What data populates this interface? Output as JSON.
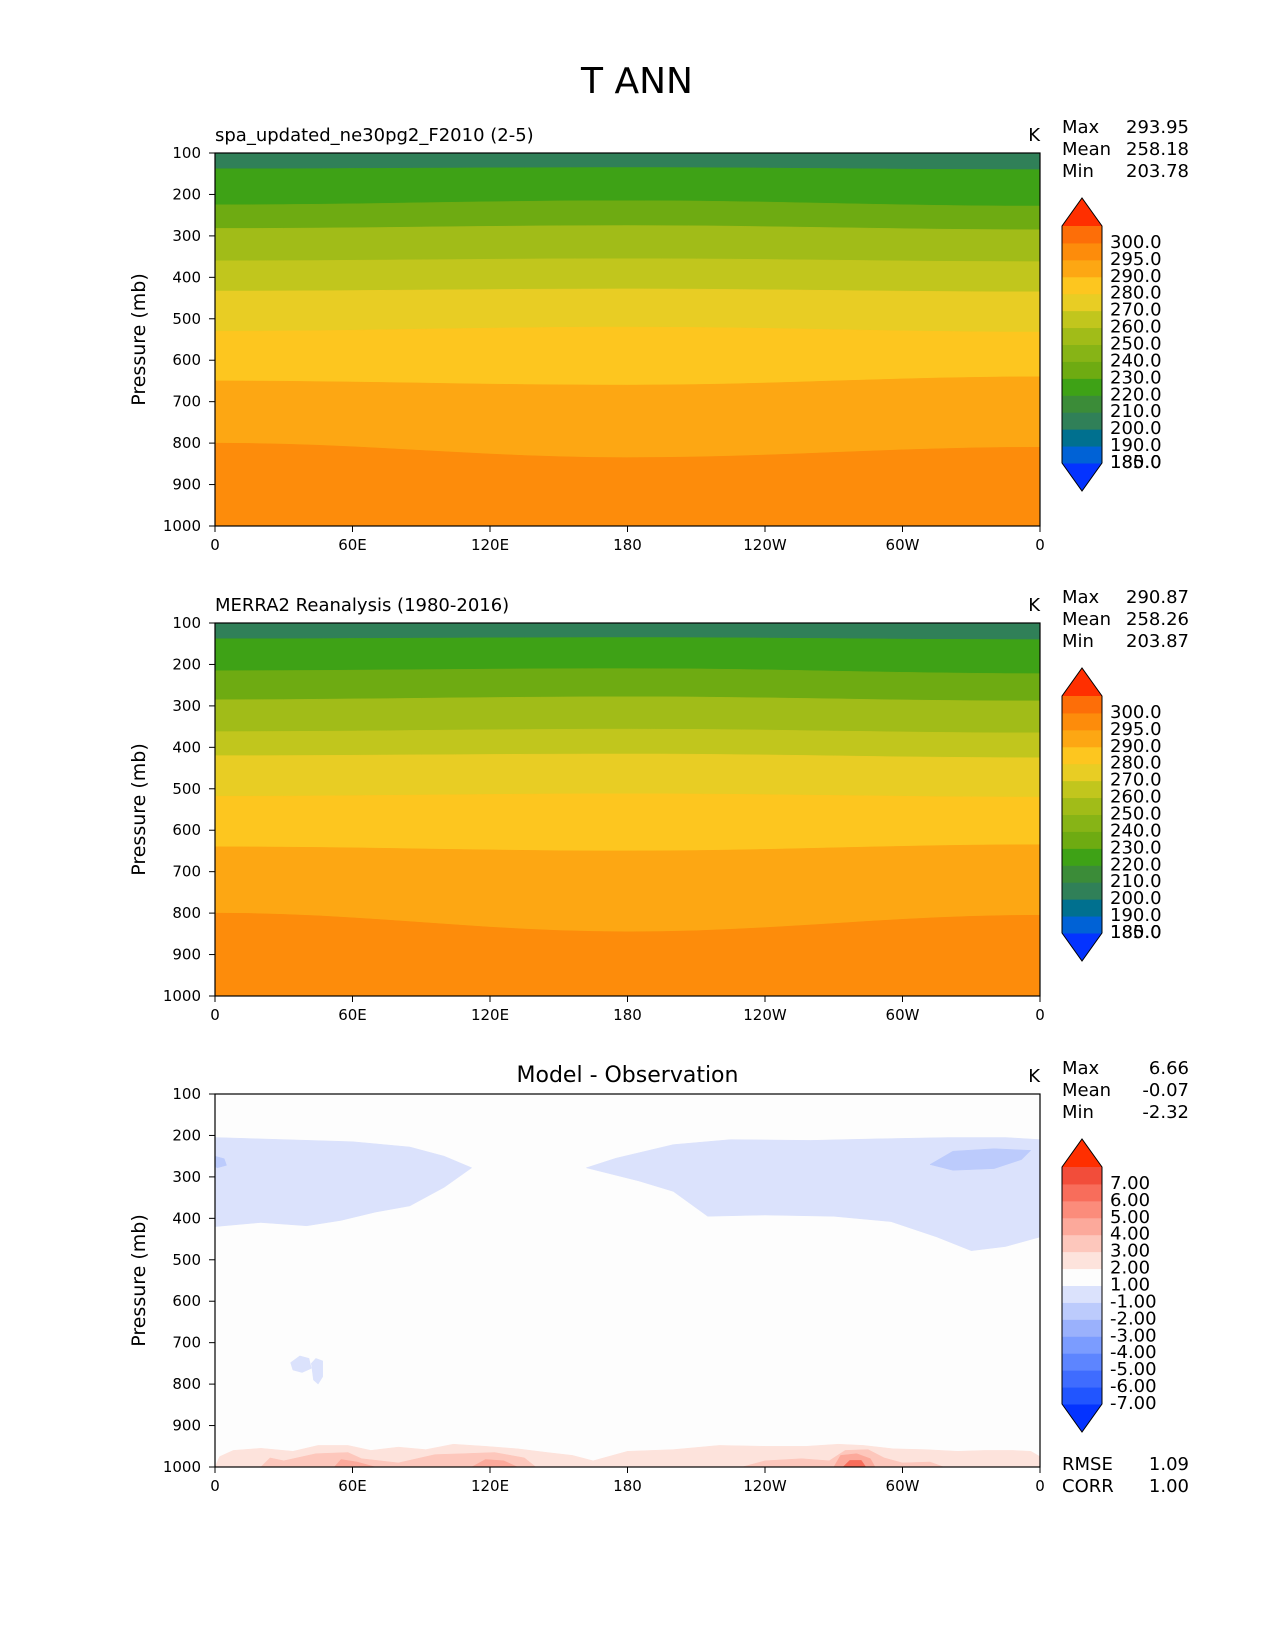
{
  "figure": {
    "title": "T ANN"
  },
  "chart_data": [
    {
      "type": "heatmap",
      "panel": "test",
      "title": "spa_updated_ne30pg2_F2010 (2-5)",
      "units": "K",
      "xlabel": "",
      "ylabel": "Pressure (mb)",
      "xticks": [
        "0",
        "60E",
        "120E",
        "180",
        "120W",
        "60W",
        "0"
      ],
      "xlim": [
        0,
        360
      ],
      "yticks": [
        "100",
        "200",
        "300",
        "400",
        "500",
        "600",
        "700",
        "800",
        "900",
        "1000"
      ],
      "ylim": [
        100,
        1000
      ],
      "stats": {
        "Max": "293.95",
        "Mean": "258.18",
        "Min": "203.78"
      },
      "stat_labels": [
        "Max",
        "Mean",
        "Min"
      ],
      "colorbar": {
        "labels": [
          "300.0",
          "295.0",
          "290.0",
          "280.0",
          "270.0",
          "260.0",
          "250.0",
          "240.0",
          "230.0",
          "220.0",
          "210.0",
          "200.0",
          "190.0",
          "185.0",
          "180.0"
        ],
        "colors": [
          "#0433ff",
          "#0062d6",
          "#00708f",
          "#308058",
          "#3b8c38",
          "#3ea216",
          "#6eab12",
          "#87b416",
          "#a1bc18",
          "#c1c61d",
          "#e8cd24",
          "#fdc61f",
          "#fda713",
          "#fd8c0b",
          "#fd6e08",
          "#ff2f00"
        ]
      },
      "bands": [
        {
          "color": "#308058",
          "top": [
            100,
            100,
            100
          ],
          "bottom": [
            138,
            135,
            140
          ]
        },
        {
          "color": "#3ea216",
          "top": [
            138,
            135,
            140
          ],
          "bottom": [
            225,
            215,
            228
          ]
        },
        {
          "color": "#6eab12",
          "top": [
            225,
            215,
            228
          ],
          "bottom": [
            282,
            275,
            285
          ]
        },
        {
          "color": "#a1bc18",
          "top": [
            282,
            275,
            285
          ],
          "bottom": [
            360,
            355,
            362
          ]
        },
        {
          "color": "#c1c61d",
          "top": [
            360,
            355,
            362
          ],
          "bottom": [
            433,
            428,
            435
          ]
        },
        {
          "color": "#e8cd24",
          "top": [
            433,
            428,
            435
          ],
          "bottom": [
            530,
            520,
            532
          ]
        },
        {
          "color": "#fdc61f",
          "top": [
            530,
            520,
            532
          ],
          "bottom": [
            650,
            660,
            640
          ]
        },
        {
          "color": "#fda713",
          "top": [
            650,
            660,
            640
          ],
          "bottom": [
            800,
            835,
            810
          ]
        },
        {
          "color": "#fd8c0b",
          "top": [
            800,
            835,
            810
          ],
          "bottom": [
            1000,
            1000,
            1000
          ]
        }
      ]
    },
    {
      "type": "heatmap",
      "panel": "reference",
      "title": "MERRA2 Reanalysis (1980-2016)",
      "units": "K",
      "xlabel": "",
      "ylabel": "Pressure (mb)",
      "xticks": [
        "0",
        "60E",
        "120E",
        "180",
        "120W",
        "60W",
        "0"
      ],
      "xlim": [
        0,
        360
      ],
      "yticks": [
        "100",
        "200",
        "300",
        "400",
        "500",
        "600",
        "700",
        "800",
        "900",
        "1000"
      ],
      "ylim": [
        100,
        1000
      ],
      "stats": {
        "Max": "290.87",
        "Mean": "258.26",
        "Min": "203.87"
      },
      "stat_labels": [
        "Max",
        "Mean",
        "Min"
      ],
      "colorbar": {
        "labels": [
          "300.0",
          "295.0",
          "290.0",
          "280.0",
          "270.0",
          "260.0",
          "250.0",
          "240.0",
          "230.0",
          "220.0",
          "210.0",
          "200.0",
          "190.0",
          "185.0",
          "180.0"
        ],
        "colors": [
          "#0433ff",
          "#0062d6",
          "#00708f",
          "#308058",
          "#3b8c38",
          "#3ea216",
          "#6eab12",
          "#87b416",
          "#a1bc18",
          "#c1c61d",
          "#e8cd24",
          "#fdc61f",
          "#fda713",
          "#fd8c0b",
          "#fd6e08",
          "#ff2f00"
        ]
      },
      "bands": [
        {
          "color": "#308058",
          "top": [
            100,
            100,
            100
          ],
          "bottom": [
            138,
            135,
            140
          ]
        },
        {
          "color": "#3ea216",
          "top": [
            138,
            135,
            140
          ],
          "bottom": [
            215,
            210,
            222
          ]
        },
        {
          "color": "#6eab12",
          "top": [
            215,
            210,
            222
          ],
          "bottom": [
            285,
            278,
            288
          ]
        },
        {
          "color": "#a1bc18",
          "top": [
            285,
            278,
            288
          ],
          "bottom": [
            362,
            356,
            365
          ]
        },
        {
          "color": "#c1c61d",
          "top": [
            362,
            356,
            365
          ],
          "bottom": [
            420,
            416,
            425
          ]
        },
        {
          "color": "#e8cd24",
          "top": [
            420,
            416,
            425
          ],
          "bottom": [
            518,
            512,
            520
          ]
        },
        {
          "color": "#fdc61f",
          "top": [
            518,
            512,
            520
          ],
          "bottom": [
            640,
            650,
            635
          ]
        },
        {
          "color": "#fda713",
          "top": [
            640,
            650,
            635
          ],
          "bottom": [
            800,
            845,
            805
          ]
        },
        {
          "color": "#fd8c0b",
          "top": [
            800,
            845,
            805
          ],
          "bottom": [
            1000,
            1000,
            1000
          ]
        }
      ]
    },
    {
      "type": "heatmap",
      "panel": "difference",
      "title": "Model - Observation",
      "units": "K",
      "xlabel": "",
      "ylabel": "Pressure (mb)",
      "xticks": [
        "0",
        "60E",
        "120E",
        "180",
        "120W",
        "60W",
        "0"
      ],
      "xlim": [
        0,
        360
      ],
      "yticks": [
        "100",
        "200",
        "300",
        "400",
        "500",
        "600",
        "700",
        "800",
        "900",
        "1000"
      ],
      "ylim": [
        100,
        1000
      ],
      "stats": {
        "Max": "6.66",
        "Mean": "-0.07",
        "Min": "-2.32"
      },
      "stat_labels": [
        "Max",
        "Mean",
        "Min"
      ],
      "metrics": {
        "RMSE": "1.09",
        "CORR": "1.00"
      },
      "metric_labels": [
        "RMSE",
        "CORR"
      ],
      "colorbar": {
        "labels": [
          "7.00",
          "6.00",
          "5.00",
          "4.00",
          "3.00",
          "2.00",
          "1.00",
          "-1.00",
          "-2.00",
          "-3.00",
          "-4.00",
          "-5.00",
          "-6.00",
          "-7.00"
        ],
        "colors": [
          "#0433ff",
          "#2155ff",
          "#3f6cff",
          "#5d85ff",
          "#7b9cff",
          "#9ab1fc",
          "#bccbfc",
          "#dbe2fc",
          "#fdfdfd",
          "#fde3dc",
          "#fdc7bc",
          "#fca99b",
          "#fb8c7b",
          "#f86d5b",
          "#f24d3a",
          "#ff2f00"
        ]
      },
      "regions": [
        {
          "color": "#dbe2fc",
          "points": [
            [
              0,
              205
            ],
            [
              30,
              210
            ],
            [
              60,
              215
            ],
            [
              85,
              228
            ],
            [
              100,
              250
            ],
            [
              112,
              278
            ],
            [
              100,
              325
            ],
            [
              85,
              370
            ],
            [
              70,
              385
            ],
            [
              55,
              405
            ],
            [
              40,
              418
            ],
            [
              20,
              410
            ],
            [
              0,
              420
            ]
          ]
        },
        {
          "color": "#dbe2fc",
          "points": [
            [
              162,
              278
            ],
            [
              175,
              255
            ],
            [
              200,
              222
            ],
            [
              225,
              210
            ],
            [
              260,
              212
            ],
            [
              290,
              208
            ],
            [
              320,
              205
            ],
            [
              345,
              205
            ],
            [
              360,
              210
            ],
            [
              360,
              445
            ],
            [
              345,
              468
            ],
            [
              330,
              478
            ],
            [
              315,
              445
            ],
            [
              295,
              408
            ],
            [
              270,
              395
            ],
            [
              240,
              392
            ],
            [
              215,
              395
            ],
            [
              200,
              335
            ],
            [
              185,
              310
            ]
          ]
        },
        {
          "color": "#bccbfc",
          "points": [
            [
              312,
              270
            ],
            [
              322,
              238
            ],
            [
              340,
              232
            ],
            [
              356,
              236
            ],
            [
              352,
              258
            ],
            [
              340,
              280
            ],
            [
              322,
              284
            ]
          ]
        },
        {
          "color": "#bccbfc",
          "points": [
            [
              0,
              250
            ],
            [
              4,
              256
            ],
            [
              5,
              272
            ],
            [
              1,
              278
            ],
            [
              0,
              275
            ]
          ]
        },
        {
          "color": "#dbe2fc",
          "points": [
            [
              33,
              748
            ],
            [
              37,
              732
            ],
            [
              41,
              738
            ],
            [
              42,
              762
            ],
            [
              38,
              772
            ],
            [
              34,
              766
            ]
          ]
        },
        {
          "color": "#dbe2fc",
          "points": [
            [
              42,
              750
            ],
            [
              44,
              738
            ],
            [
              47,
              744
            ],
            [
              47,
              782
            ],
            [
              45,
              800
            ],
            [
              43,
              790
            ]
          ]
        },
        {
          "color": "#fde3dc",
          "points": [
            [
              0,
              1000
            ],
            [
              2,
              975
            ],
            [
              8,
              960
            ],
            [
              20,
              955
            ],
            [
              34,
              962
            ],
            [
              45,
              948
            ],
            [
              58,
              948
            ],
            [
              68,
              960
            ],
            [
              80,
              952
            ],
            [
              92,
              958
            ],
            [
              104,
              945
            ],
            [
              118,
              950
            ],
            [
              132,
              956
            ],
            [
              145,
              965
            ],
            [
              156,
              972
            ],
            [
              165,
              985
            ],
            [
              180,
              962
            ],
            [
              200,
              958
            ],
            [
              220,
              948
            ],
            [
              240,
              950
            ],
            [
              258,
              950
            ],
            [
              272,
              945
            ],
            [
              283,
              948
            ],
            [
              296,
              956
            ],
            [
              310,
              958
            ],
            [
              324,
              962
            ],
            [
              336,
              960
            ],
            [
              348,
              960
            ],
            [
              356,
              962
            ],
            [
              360,
              975
            ],
            [
              360,
              1000
            ]
          ]
        },
        {
          "color": "#fdc7bc",
          "points": [
            [
              20,
              1000
            ],
            [
              24,
              978
            ],
            [
              30,
              985
            ],
            [
              44,
              968
            ],
            [
              58,
              965
            ],
            [
              64,
              980
            ],
            [
              80,
              990
            ],
            [
              96,
              970
            ],
            [
              108,
              968
            ],
            [
              122,
              965
            ],
            [
              135,
              978
            ],
            [
              140,
              1000
            ]
          ]
        },
        {
          "color": "#fdc7bc",
          "points": [
            [
              230,
              1000
            ],
            [
              240,
              985
            ],
            [
              256,
              980
            ],
            [
              268,
              985
            ],
            [
              275,
              960
            ],
            [
              285,
              958
            ],
            [
              292,
              978
            ],
            [
              300,
              990
            ],
            [
              312,
              988
            ],
            [
              318,
              1000
            ]
          ]
        },
        {
          "color": "#fca99b",
          "points": [
            [
              52,
              1000
            ],
            [
              55,
              982
            ],
            [
              62,
              988
            ],
            [
              70,
              1000
            ]
          ]
        },
        {
          "color": "#fca99b",
          "points": [
            [
              112,
              1000
            ],
            [
              118,
              982
            ],
            [
              126,
              985
            ],
            [
              132,
              1000
            ]
          ]
        },
        {
          "color": "#fca99b",
          "points": [
            [
              270,
              1000
            ],
            [
              273,
              972
            ],
            [
              280,
              968
            ],
            [
              286,
              980
            ],
            [
              288,
              1000
            ]
          ]
        },
        {
          "color": "#f86d5b",
          "points": [
            [
              274,
              1000
            ],
            [
              277,
              984
            ],
            [
              282,
              984
            ],
            [
              284,
              1000
            ]
          ]
        }
      ]
    }
  ]
}
